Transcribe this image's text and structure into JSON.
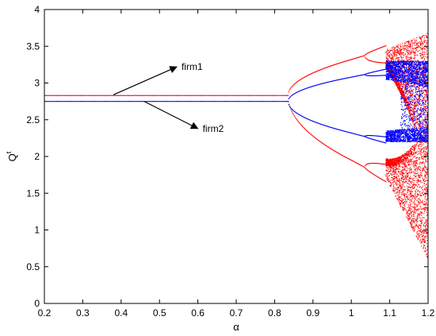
{
  "chart_data": {
    "type": "scatter",
    "subtype": "bifurcation-diagram",
    "xlabel": "α",
    "ylabel_base": "Q",
    "ylabel_sup": "t",
    "xlim": [
      0.2,
      1.2
    ],
    "ylim": [
      0,
      4
    ],
    "xticks": [
      0.2,
      0.3,
      0.4,
      0.5,
      0.6,
      0.7,
      0.8,
      0.9,
      1,
      1.1,
      1.2
    ],
    "xtick_labels": [
      "0.2",
      "0.3",
      "0.4",
      "0.5",
      "0.6",
      "0.7",
      "0.8",
      "0.9",
      "1",
      "1.1",
      "1.2"
    ],
    "yticks": [
      0,
      0.5,
      1,
      1.5,
      2,
      2.5,
      3,
      3.5,
      4
    ],
    "ytick_labels": [
      "0",
      "0.5",
      "1",
      "1.5",
      "2",
      "2.5",
      "3",
      "3.5",
      "4"
    ],
    "grid": false,
    "colors": {
      "firm1": "#ff0000",
      "firm2": "#0000ff",
      "axis": "#000000",
      "arrow": "#000000"
    },
    "series": [
      {
        "name": "firm1",
        "color": "#ff0000",
        "fixed_point": 2.83,
        "flip_bifurcation_alpha": 0.835,
        "period2_branches_at_1_0": [
          3.32,
          1.95
        ],
        "period4_onset_alpha": 1.035,
        "chaos_onset_alpha": 1.09,
        "chaotic_range_at_1_2": [
          0.6,
          3.68
        ]
      },
      {
        "name": "firm2",
        "color": "#0000ff",
        "fixed_point": 2.75,
        "flip_bifurcation_alpha": 0.835,
        "period2_branches_at_1_0": [
          3.08,
          2.32
        ],
        "period4_onset_alpha": 1.035,
        "chaos_onset_alpha": 1.09,
        "chaotic_range_at_1_2": [
          2.2,
          3.3
        ]
      }
    ],
    "annotations": [
      {
        "text": "firm1",
        "from": [
          0.38,
          2.84
        ],
        "to": [
          0.545,
          3.22
        ]
      },
      {
        "text": "firm2",
        "from": [
          0.46,
          2.75
        ],
        "to": [
          0.6,
          2.38
        ]
      }
    ]
  }
}
